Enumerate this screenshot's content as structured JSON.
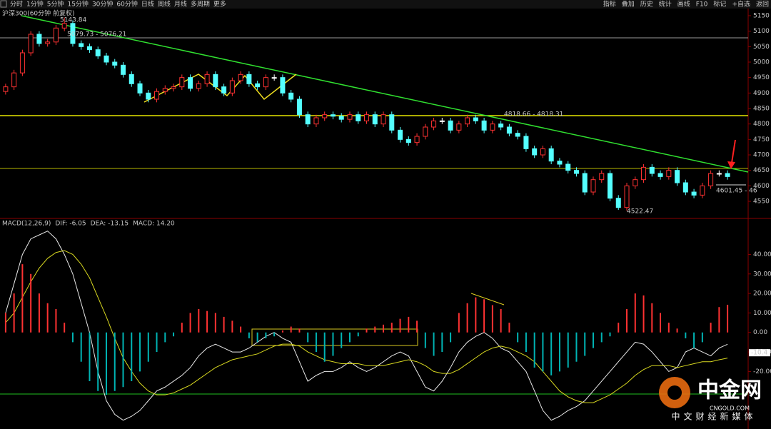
{
  "toolbar": {
    "left_tabs": [
      "分时",
      "1分钟",
      "5分钟",
      "15分钟",
      "30分钟",
      "60分钟",
      "日线",
      "周线",
      "月线",
      "多周期",
      "更多"
    ],
    "right_tabs": [
      "指标",
      "叠加",
      "历史",
      "统计",
      "画线",
      "F10",
      "标记",
      "+自选",
      "返回"
    ]
  },
  "chart_data": [
    {
      "type": "candlestick",
      "title": "沪深300(60分钟 前复权)",
      "up_color": "#ff3232",
      "down_color": "#54ffff",
      "flat_color": "#ffffff",
      "open": [
        4905,
        4920,
        4965,
        5030,
        5090,
        5060,
        5065,
        5110,
        5125,
        5060,
        5050,
        5040,
        5020,
        5000,
        4990,
        4960,
        4930,
        4900,
        4880,
        4905,
        4915,
        4920,
        4950,
        4915,
        4930,
        4960,
        4920,
        4900,
        4940,
        4960,
        4930,
        4920,
        4950,
        4950,
        4900,
        4880,
        4830,
        4800,
        4820,
        4830,
        4825,
        4815,
        4830,
        4810,
        4830,
        4800,
        4830,
        4780,
        4750,
        4740,
        4760,
        4790,
        4810,
        4810,
        4780,
        4800,
        4820,
        4810,
        4780,
        4800,
        4790,
        4770,
        4760,
        4720,
        4700,
        4720,
        4680,
        4670,
        4650,
        4640,
        4580,
        4620,
        4640,
        4560,
        4530,
        4600,
        4620,
        4660,
        4640,
        4630,
        4650,
        4610,
        4580,
        4570,
        4600,
        4640,
        4640
      ],
      "high": [
        4930,
        4975,
        5040,
        5100,
        5100,
        5075,
        5120,
        5143.84,
        5135,
        5070,
        5060,
        5050,
        5030,
        5010,
        5000,
        4970,
        4940,
        4910,
        4915,
        4925,
        4930,
        4960,
        4960,
        4940,
        4970,
        4970,
        4930,
        4950,
        4970,
        4970,
        4940,
        4960,
        4960,
        4960,
        4910,
        4890,
        4840,
        4830,
        4840,
        4840,
        4835,
        4840,
        4840,
        4840,
        4840,
        4840,
        4840,
        4790,
        4760,
        4770,
        4800,
        4820,
        4820,
        4820,
        4810,
        4830,
        4830,
        4820,
        4810,
        4810,
        4800,
        4780,
        4770,
        4730,
        4730,
        4730,
        4690,
        4680,
        4660,
        4650,
        4630,
        4650,
        4650,
        4570,
        4610,
        4630,
        4670,
        4670,
        4650,
        4660,
        4660,
        4620,
        4590,
        4610,
        4650,
        4650,
        4650
      ],
      "low": [
        4895,
        4910,
        4955,
        5020,
        5050,
        5050,
        5055,
        5100,
        5050,
        5040,
        5030,
        5010,
        4990,
        4980,
        4950,
        4920,
        4890,
        4870,
        4870,
        4895,
        4905,
        4910,
        4905,
        4905,
        4920,
        4910,
        4890,
        4890,
        4930,
        4920,
        4910,
        4910,
        4940,
        4890,
        4870,
        4820,
        4790,
        4790,
        4810,
        4815,
        4805,
        4805,
        4800,
        4800,
        4790,
        4790,
        4770,
        4740,
        4730,
        4730,
        4750,
        4780,
        4800,
        4770,
        4770,
        4790,
        4800,
        4770,
        4770,
        4780,
        4760,
        4750,
        4710,
        4690,
        4690,
        4670,
        4660,
        4640,
        4630,
        4570,
        4570,
        4610,
        4550,
        4522.47,
        4520,
        4590,
        4610,
        4630,
        4620,
        4620,
        4600,
        4570,
        4560,
        4560,
        4590,
        4630,
        4620
      ],
      "close": [
        4920,
        4965,
        5030,
        5090,
        5060,
        5065,
        5110,
        5125,
        5060,
        5050,
        5040,
        5020,
        5000,
        4990,
        4960,
        4930,
        4900,
        4880,
        4905,
        4915,
        4920,
        4950,
        4915,
        4930,
        4960,
        4920,
        4900,
        4940,
        4960,
        4930,
        4920,
        4950,
        4950,
        4900,
        4880,
        4830,
        4800,
        4820,
        4830,
        4825,
        4815,
        4830,
        4810,
        4830,
        4800,
        4830,
        4780,
        4750,
        4740,
        4760,
        4790,
        4810,
        4810,
        4780,
        4800,
        4820,
        4810,
        4780,
        4800,
        4790,
        4770,
        4760,
        4720,
        4700,
        4720,
        4680,
        4670,
        4650,
        4640,
        4580,
        4620,
        4640,
        4560,
        4530,
        4600,
        4620,
        4660,
        4640,
        4630,
        4650,
        4610,
        4580,
        4570,
        4600,
        4640,
        4640,
        4630
      ],
      "ylim": [
        4497,
        5173
      ],
      "yticks": [
        5150,
        5100,
        5050,
        5000,
        4950,
        4900,
        4850,
        4800,
        4750,
        4700,
        4650,
        4600,
        4550
      ],
      "annotations": [
        "5143.84",
        "5079.73 - 5076.21",
        "4818.66 - 4818.31",
        "4522.47",
        "4601.45 - 46"
      ]
    },
    {
      "type": "macd",
      "legend": [
        "MACD(12,26,9)",
        "DIF: -6.05",
        "DEA: -13.15",
        "MACD: 14.20"
      ],
      "series": [
        {
          "name": "DIF",
          "color": "#e8e8e8",
          "values": [
            10,
            25,
            40,
            48,
            50,
            52,
            48,
            40,
            30,
            15,
            0,
            -20,
            -35,
            -42,
            -45,
            -43,
            -40,
            -35,
            -30,
            -28,
            -25,
            -22,
            -18,
            -12,
            -8,
            -6,
            -8,
            -10,
            -10,
            -8,
            -5,
            -2,
            0,
            -3,
            -5,
            -15,
            -25,
            -22,
            -20,
            -20,
            -18,
            -15,
            -18,
            -20,
            -18,
            -15,
            -12,
            -10,
            -12,
            -20,
            -28,
            -30,
            -25,
            -18,
            -10,
            -5,
            -2,
            0,
            -3,
            -8,
            -10,
            -15,
            -20,
            -30,
            -40,
            -45,
            -43,
            -40,
            -38,
            -35,
            -30,
            -25,
            -20,
            -15,
            -10,
            -5,
            -6,
            -10,
            -15,
            -20,
            -18,
            -10,
            -8,
            -10,
            -12,
            -8,
            -6.05
          ]
        },
        {
          "name": "DEA",
          "color": "#d8d820",
          "values": [
            5,
            10,
            18,
            26,
            33,
            38,
            41,
            42,
            40,
            35,
            28,
            18,
            8,
            -3,
            -13,
            -20,
            -26,
            -30,
            -32,
            -32,
            -31,
            -29,
            -27,
            -24,
            -21,
            -18,
            -16,
            -14,
            -13,
            -12,
            -11,
            -9,
            -7,
            -6,
            -6,
            -7,
            -10,
            -12,
            -14,
            -15,
            -16,
            -16,
            -16,
            -17,
            -17,
            -17,
            -16,
            -15,
            -14,
            -15,
            -17,
            -20,
            -21,
            -21,
            -19,
            -16,
            -13,
            -10,
            -8,
            -7,
            -8,
            -10,
            -12,
            -15,
            -20,
            -25,
            -30,
            -33,
            -35,
            -36,
            -36,
            -34,
            -32,
            -29,
            -26,
            -22,
            -19,
            -17,
            -17,
            -17,
            -18,
            -17,
            -16,
            -15,
            -15,
            -14,
            -13.15
          ]
        },
        {
          "name": "MACD",
          "color": "#ff40ff",
          "up_color": "#ff3232",
          "down_color": "#00b4b4",
          "values": [
            10,
            20,
            35,
            30,
            20,
            15,
            12,
            5,
            -5,
            -15,
            -25,
            -30,
            -32,
            -30,
            -28,
            -25,
            -20,
            -15,
            -10,
            -5,
            -2,
            5,
            10,
            12,
            11,
            10,
            8,
            6,
            3,
            -3,
            -5,
            -3,
            -2,
            1,
            3,
            2,
            -5,
            -10,
            -15,
            -12,
            -8,
            -5,
            -2,
            2,
            3,
            4,
            5,
            7,
            8,
            6,
            -8,
            -12,
            -10,
            -5,
            10,
            15,
            18,
            17,
            14,
            12,
            5,
            -5,
            -10,
            -18,
            -20,
            -22,
            -20,
            -18,
            -15,
            -12,
            -8,
            -5,
            -2,
            5,
            12,
            20,
            19,
            15,
            10,
            5,
            2,
            -3,
            -8,
            -5,
            5,
            13,
            14.2
          ]
        }
      ],
      "ylim": [
        -49.5,
        57
      ],
      "yticks": [
        {
          "value": 40,
          "label": "40.00"
        },
        {
          "value": 30,
          "label": "30.00"
        },
        {
          "value": 20,
          "label": "20.00"
        },
        {
          "value": 10,
          "label": "10.00"
        },
        {
          "value": 0,
          "label": "0.00"
        },
        {
          "value": -10,
          "label": "-10.00"
        },
        {
          "value": -20,
          "label": "-20.00"
        }
      ],
      "current_label": {
        "value": -10.4,
        "label": "-10.4"
      }
    }
  ],
  "watermark": {
    "brand": "中金网",
    "site": "CNGOLD.COM",
    "slogan": "中文财经新媒体"
  }
}
